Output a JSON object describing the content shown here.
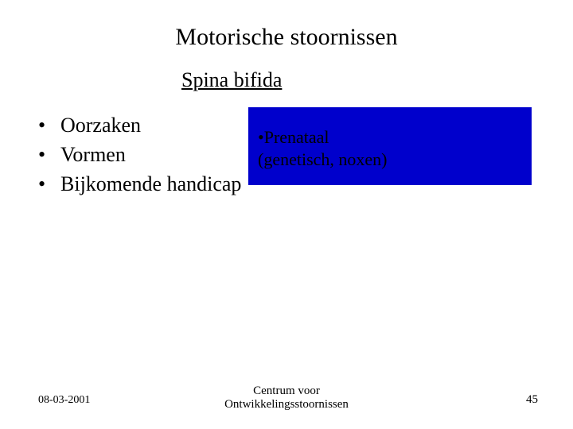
{
  "title": "Motorische stoornissen",
  "subtitle": "Spina bifida",
  "bullets": {
    "items": [
      "Oorzaken",
      "Vormen",
      "Bijkomende handicap"
    ]
  },
  "callout": {
    "line1": "•Prenataal",
    "line2": "(genetisch, noxen)",
    "bg_color": "#0000cc",
    "text_color": "#000000"
  },
  "footer": {
    "date": "08-03-2001",
    "center_line1": "Centrum voor",
    "center_line2": "Ontwikkelingsstoornissen",
    "page": "45"
  },
  "styles": {
    "background_color": "#ffffff",
    "title_fontsize": 30,
    "subtitle_fontsize": 26,
    "bullet_fontsize": 26,
    "callout_fontsize": 22,
    "footer_fontsize": 14,
    "font_family": "Times New Roman"
  }
}
